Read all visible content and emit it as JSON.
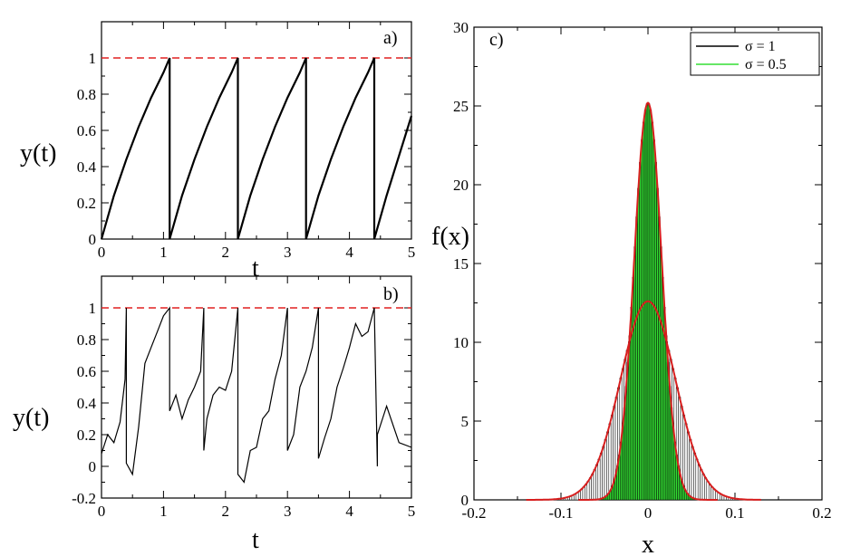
{
  "chart_data": [
    {
      "panel": "a)",
      "type": "line",
      "xlabel": "t",
      "ylabel": "y(t)",
      "xlim": [
        0,
        5
      ],
      "ylim": [
        0,
        1.2
      ],
      "xticks": [
        "0",
        "1",
        "2",
        "3",
        "4",
        "5"
      ],
      "yticks": [
        "0",
        "0.2",
        "0.4",
        "0.6",
        "0.8",
        "1"
      ],
      "threshold": 1,
      "reset_times": [
        0,
        1.1,
        2.2,
        3.3,
        4.4
      ],
      "series": [
        {
          "x": [
            0,
            0.2,
            0.4,
            0.6,
            0.8,
            1.0,
            1.1,
            1.1,
            1.3,
            1.5,
            1.7,
            1.9,
            2.1,
            2.2,
            2.2,
            2.4,
            2.6,
            2.8,
            3.0,
            3.2,
            3.3,
            3.3,
            3.5,
            3.7,
            3.9,
            4.1,
            4.3,
            4.4,
            4.4,
            4.6,
            4.8,
            5.0
          ],
          "y": [
            0,
            0.24,
            0.44,
            0.62,
            0.78,
            0.92,
            1.0,
            0,
            0.24,
            0.44,
            0.62,
            0.78,
            0.92,
            1.0,
            0,
            0.24,
            0.44,
            0.62,
            0.78,
            0.92,
            1.0,
            0,
            0.24,
            0.44,
            0.62,
            0.78,
            0.92,
            1.0,
            0,
            0.24,
            0.46,
            0.68
          ]
        }
      ]
    },
    {
      "panel": "b)",
      "type": "line",
      "xlabel": "t",
      "ylabel": "y(t)",
      "xlim": [
        0,
        5
      ],
      "ylim": [
        -0.2,
        1.2
      ],
      "xticks": [
        "0",
        "1",
        "2",
        "3",
        "4",
        "5"
      ],
      "yticks": [
        "-0.2",
        "0",
        "0.2",
        "0.4",
        "0.6",
        "0.8",
        "1"
      ],
      "threshold": 1,
      "series": [
        {
          "x": [
            0,
            0.1,
            0.2,
            0.3,
            0.38,
            0.4,
            0.4,
            0.5,
            0.6,
            0.7,
            0.8,
            0.9,
            1.0,
            1.1,
            1.1,
            1.2,
            1.3,
            1.4,
            1.5,
            1.6,
            1.65,
            1.65,
            1.7,
            1.8,
            1.9,
            2.0,
            2.1,
            2.2,
            2.2,
            2.3,
            2.4,
            2.5,
            2.6,
            2.7,
            2.8,
            2.9,
            3.0,
            3.0,
            3.1,
            3.2,
            3.3,
            3.4,
            3.5,
            3.5,
            3.6,
            3.7,
            3.8,
            3.9,
            4.0,
            4.1,
            4.2,
            4.3,
            4.4,
            4.45,
            4.45,
            4.6,
            4.8,
            5.0
          ],
          "y": [
            0.08,
            0.2,
            0.15,
            0.28,
            0.55,
            1.0,
            0.02,
            -0.05,
            0.25,
            0.65,
            0.75,
            0.85,
            0.95,
            1.0,
            0.35,
            0.45,
            0.3,
            0.42,
            0.5,
            0.6,
            1.0,
            0.1,
            0.3,
            0.45,
            0.5,
            0.48,
            0.6,
            1.0,
            -0.05,
            -0.1,
            0.1,
            0.12,
            0.3,
            0.35,
            0.55,
            0.7,
            1.0,
            0.1,
            0.2,
            0.5,
            0.6,
            0.75,
            1.0,
            0.05,
            0.18,
            0.3,
            0.5,
            0.62,
            0.75,
            0.9,
            0.82,
            0.85,
            1.0,
            0.0,
            0.2,
            0.38,
            0.15,
            0.12
          ]
        }
      ]
    },
    {
      "panel": "c)",
      "type": "bar",
      "xlabel": "x",
      "ylabel": "f(x)",
      "xlim": [
        -0.2,
        0.2
      ],
      "ylim": [
        0,
        30
      ],
      "xticks": [
        "-0.2",
        "-0.1",
        "0",
        "0.1",
        "0.2"
      ],
      "yticks": [
        "0",
        "5",
        "10",
        "15",
        "20",
        "25",
        "30"
      ],
      "legend": [
        {
          "name": "σ = 1",
          "color": "#000000"
        },
        {
          "name": "σ = 0.5",
          "color": "#33dd33"
        }
      ],
      "series": [
        {
          "name": "σ = 1",
          "mean": 0,
          "std": 0.0316,
          "peak": 12.6,
          "x_range": [
            -0.14,
            0.13
          ],
          "bin_width": 0.0025,
          "color": "#000000"
        },
        {
          "name": "σ = 0.5",
          "mean": 0,
          "std": 0.0158,
          "peak": 25.2,
          "x_range": [
            -0.08,
            0.08
          ],
          "bin_width": 0.002,
          "color": "#33dd33"
        }
      ],
      "fit_color": "#d81e1e"
    }
  ]
}
